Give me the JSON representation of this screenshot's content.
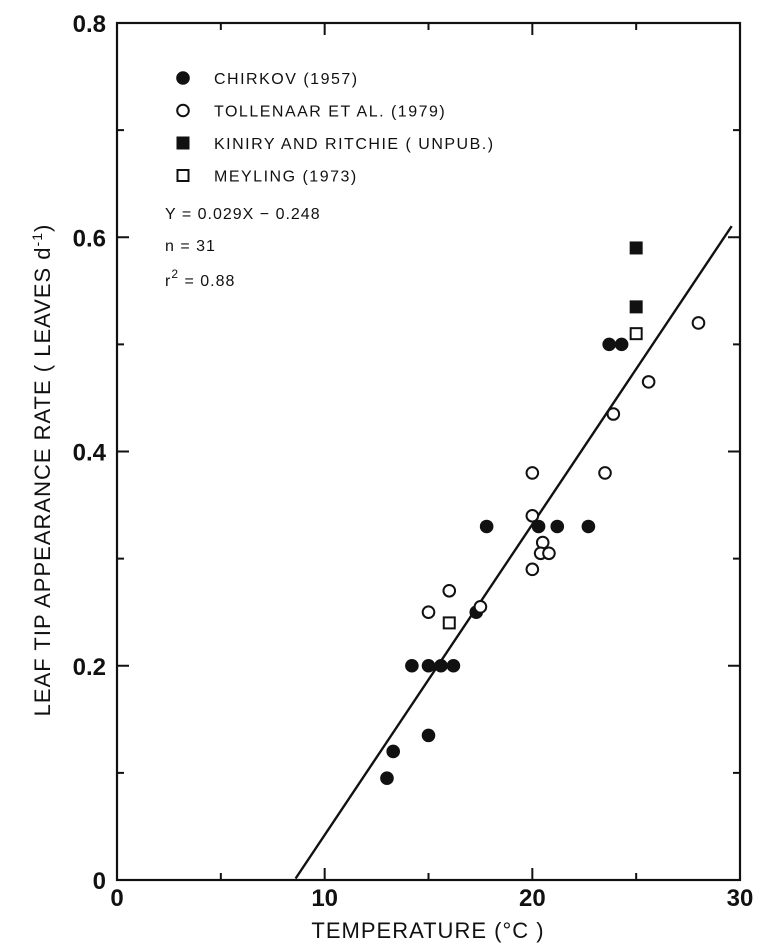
{
  "chart_data": {
    "type": "scatter",
    "xlabel": "TEMPERATURE (°C )",
    "ylabel": "LEAF TIP APPEARANCE RATE ( LEAVES d",
    "ylabel_sup": "-1",
    "ylabel_end": ")",
    "xlim": [
      0,
      30
    ],
    "ylim": [
      0,
      0.8
    ],
    "x_ticks": [
      0,
      10,
      20,
      30
    ],
    "x_tick_labels": [
      "0",
      "10",
      "20",
      "30"
    ],
    "y_ticks": [
      0,
      0.2,
      0.4,
      0.6,
      0.8
    ],
    "y_tick_labels": [
      "0",
      "0.2",
      "0.4",
      "0.6",
      "0.8"
    ],
    "grid": false,
    "legend_position": "top-left",
    "series": [
      {
        "name": "CHIRKOV (1957)",
        "marker": "filled-circle",
        "points": [
          [
            13.0,
            0.095
          ],
          [
            13.3,
            0.12
          ],
          [
            14.2,
            0.2
          ],
          [
            15.0,
            0.2
          ],
          [
            15.0,
            0.135
          ],
          [
            15.6,
            0.2
          ],
          [
            16.2,
            0.2
          ],
          [
            17.3,
            0.25
          ],
          [
            17.8,
            0.33
          ],
          [
            20.3,
            0.33
          ],
          [
            21.2,
            0.33
          ],
          [
            22.7,
            0.33
          ],
          [
            23.7,
            0.5
          ],
          [
            24.3,
            0.5
          ]
        ]
      },
      {
        "name": "TOLLENAAR ET AL. (1979)",
        "marker": "open-circle",
        "points": [
          [
            15.0,
            0.25
          ],
          [
            16.0,
            0.27
          ],
          [
            17.5,
            0.255
          ],
          [
            20.0,
            0.38
          ],
          [
            20.0,
            0.34
          ],
          [
            20.0,
            0.29
          ],
          [
            20.5,
            0.315
          ],
          [
            20.4,
            0.305
          ],
          [
            20.8,
            0.305
          ],
          [
            23.5,
            0.38
          ],
          [
            23.9,
            0.435
          ],
          [
            25.6,
            0.465
          ],
          [
            28.0,
            0.52
          ]
        ]
      },
      {
        "name": "KINIRY AND RITCHIE ( UNPUB.)",
        "marker": "filled-square",
        "points": [
          [
            25.0,
            0.59
          ],
          [
            25.0,
            0.535
          ]
        ]
      },
      {
        "name": "MEYLING (1973)",
        "marker": "open-square",
        "points": [
          [
            16.0,
            0.24
          ],
          [
            25.0,
            0.51
          ]
        ]
      }
    ],
    "fit_line": {
      "x_start": 8.6,
      "x_end": 29.6,
      "slope": 0.029,
      "intercept": -0.248
    },
    "annotations": {
      "equation": "Y = 0.029X − 0.248",
      "n": "n = 31",
      "r2_prefix": "r",
      "r2_sup": "2",
      "r2_suffix": " = 0.88"
    }
  }
}
